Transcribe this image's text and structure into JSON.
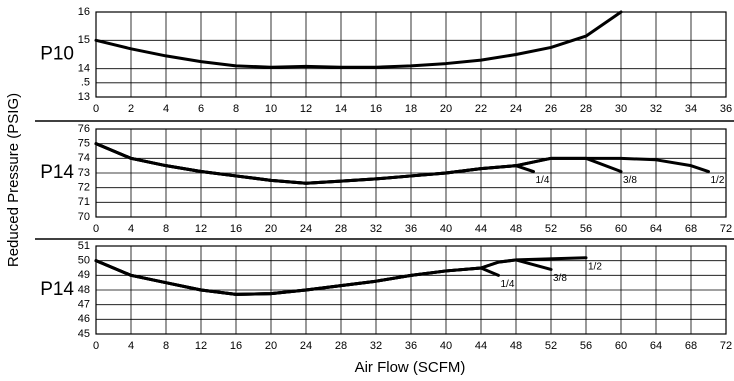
{
  "ylabel": "Reduced Pressure (PSIG)",
  "xlabel": "Air Flow (SCFM)",
  "chart_data": [
    {
      "type": "line",
      "label": "P10",
      "xlim": [
        0,
        36
      ],
      "xticks": [
        0,
        2,
        4,
        6,
        8,
        10,
        12,
        14,
        16,
        18,
        20,
        22,
        24,
        26,
        28,
        30,
        32,
        34,
        36
      ],
      "ylim": [
        13,
        16
      ],
      "yticks": [
        13,
        {
          "value": 13.5,
          "label": ".5"
        },
        14,
        15,
        16
      ],
      "grid": true,
      "series": [
        {
          "color": "#000000",
          "x": [
            0,
            2,
            4,
            6,
            8,
            10,
            12,
            14,
            16,
            18,
            20,
            22,
            24,
            26,
            28,
            30
          ],
          "values": [
            15.0,
            14.7,
            14.45,
            14.25,
            14.1,
            14.05,
            14.08,
            14.05,
            14.05,
            14.1,
            14.18,
            14.3,
            14.5,
            14.75,
            15.15,
            16.0
          ]
        }
      ]
    },
    {
      "type": "line",
      "label": "P14",
      "xlim": [
        0,
        72
      ],
      "xticks": [
        0,
        4,
        8,
        12,
        16,
        20,
        24,
        28,
        32,
        36,
        40,
        44,
        48,
        52,
        56,
        60,
        64,
        68,
        72
      ],
      "ylim": [
        70,
        76
      ],
      "yticks": [
        70,
        71,
        72,
        73,
        74,
        75,
        76
      ],
      "grid": true,
      "series": [
        {
          "name": "1/4",
          "color": "#000000",
          "x": [
            0,
            4,
            8,
            12,
            16,
            20,
            24,
            28,
            32,
            36,
            40,
            44,
            48,
            50
          ],
          "values": [
            75,
            74,
            73.5,
            73.1,
            72.8,
            72.5,
            72.3,
            72.45,
            72.6,
            72.8,
            73,
            73.3,
            73.5,
            73.1
          ]
        },
        {
          "name": "3/8",
          "color": "#000000",
          "x": [
            0,
            4,
            8,
            12,
            16,
            20,
            24,
            28,
            32,
            36,
            40,
            44,
            48,
            52,
            56,
            60
          ],
          "values": [
            75,
            74,
            73.5,
            73.1,
            72.8,
            72.5,
            72.3,
            72.45,
            72.6,
            72.8,
            73,
            73.3,
            73.5,
            74,
            74,
            73.1
          ]
        },
        {
          "name": "1/2",
          "color": "#000000",
          "x": [
            0,
            4,
            8,
            12,
            16,
            20,
            24,
            28,
            32,
            36,
            40,
            44,
            48,
            52,
            56,
            60,
            64,
            68,
            70
          ],
          "values": [
            75,
            74,
            73.5,
            73.1,
            72.8,
            72.5,
            72.3,
            72.45,
            72.6,
            72.8,
            73,
            73.3,
            73.5,
            74,
            74,
            74,
            73.9,
            73.5,
            73.1
          ]
        }
      ]
    },
    {
      "type": "line",
      "label": "P14",
      "xlim": [
        0,
        72
      ],
      "xticks": [
        0,
        4,
        8,
        12,
        16,
        20,
        24,
        28,
        32,
        36,
        40,
        44,
        48,
        52,
        56,
        60,
        64,
        68,
        72
      ],
      "ylim": [
        45,
        51
      ],
      "yticks": [
        45,
        46,
        47,
        48,
        49,
        50,
        51
      ],
      "grid": true,
      "series": [
        {
          "name": "1/4",
          "color": "#000000",
          "x": [
            0,
            4,
            8,
            12,
            16,
            20,
            24,
            28,
            32,
            36,
            40,
            44,
            46
          ],
          "values": [
            50,
            49,
            48.5,
            48,
            47.7,
            47.75,
            48,
            48.3,
            48.6,
            49,
            49.3,
            49.5,
            49
          ]
        },
        {
          "name": "3/8",
          "color": "#000000",
          "x": [
            0,
            4,
            8,
            12,
            16,
            20,
            24,
            28,
            32,
            36,
            40,
            44,
            46,
            48,
            52
          ],
          "values": [
            50,
            49,
            48.5,
            48,
            47.7,
            47.75,
            48,
            48.3,
            48.6,
            49,
            49.3,
            49.5,
            49.9,
            50.05,
            49.4
          ]
        },
        {
          "name": "1/2",
          "color": "#000000",
          "x": [
            0,
            4,
            8,
            12,
            16,
            20,
            24,
            28,
            32,
            36,
            40,
            44,
            46,
            48,
            56
          ],
          "values": [
            50,
            49,
            48.5,
            48,
            47.7,
            47.75,
            48,
            48.3,
            48.6,
            49,
            49.3,
            49.5,
            49.9,
            50.05,
            50.2
          ]
        }
      ]
    }
  ]
}
